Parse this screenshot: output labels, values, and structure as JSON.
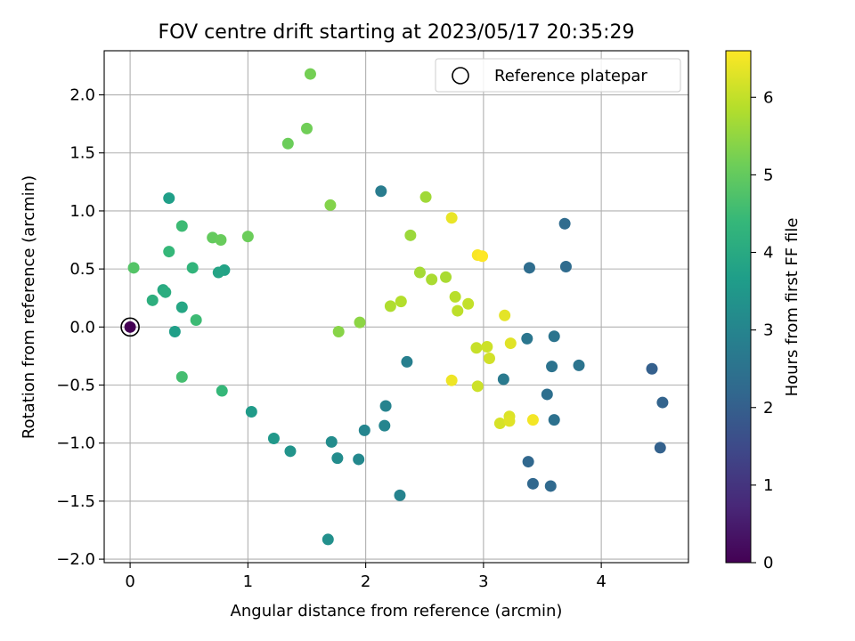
{
  "chart_data": {
    "type": "scatter",
    "title": "FOV centre drift starting at 2023/05/17 20:35:29",
    "xlabel": "Angular distance from reference (arcmin)",
    "ylabel": "Rotation from reference (arcmin)",
    "xlim": [
      -0.22,
      4.74
    ],
    "ylim": [
      -2.03,
      2.38
    ],
    "xticks": [
      "0",
      "1",
      "2",
      "3",
      "4"
    ],
    "yticks": [
      "−2.0",
      "−1.5",
      "−1.0",
      "−0.5",
      "0.0",
      "0.5",
      "1.0",
      "1.5",
      "2.0"
    ],
    "grid": true,
    "legend": {
      "placement": "top-right",
      "entries": [
        "Reference platepar"
      ]
    },
    "reference_point": {
      "x": 0.0,
      "y": 0.0,
      "hours": 0.0
    },
    "colorbar": {
      "label": "Hours from first FF file",
      "range": [
        0,
        6.6
      ],
      "ticks": [
        "0",
        "1",
        "2",
        "3",
        "4",
        "5",
        "6"
      ],
      "colormap": [
        "#440154",
        "#482878",
        "#3e4989",
        "#31688e",
        "#26828e",
        "#1f9e89",
        "#35b779",
        "#6ece58",
        "#b5de2b",
        "#fde725"
      ]
    },
    "points": [
      {
        "x": 4.43,
        "y": -0.36,
        "hours": 2.0
      },
      {
        "x": 4.52,
        "y": -0.65,
        "hours": 2.1
      },
      {
        "x": 4.5,
        "y": -1.04,
        "hours": 2.05
      },
      {
        "x": 3.38,
        "y": -1.16,
        "hours": 2.2
      },
      {
        "x": 3.42,
        "y": -1.35,
        "hours": 2.2
      },
      {
        "x": 3.57,
        "y": -1.37,
        "hours": 2.25
      },
      {
        "x": 3.69,
        "y": 0.89,
        "hours": 2.3
      },
      {
        "x": 3.7,
        "y": 0.52,
        "hours": 2.3
      },
      {
        "x": 3.39,
        "y": 0.51,
        "hours": 2.35
      },
      {
        "x": 3.54,
        "y": -0.58,
        "hours": 2.4
      },
      {
        "x": 3.6,
        "y": -0.8,
        "hours": 2.45
      },
      {
        "x": 3.58,
        "y": -0.34,
        "hours": 2.5
      },
      {
        "x": 3.6,
        "y": -0.08,
        "hours": 2.55
      },
      {
        "x": 3.81,
        "y": -0.33,
        "hours": 2.55
      },
      {
        "x": 3.37,
        "y": -0.1,
        "hours": 2.6
      },
      {
        "x": 3.17,
        "y": -0.45,
        "hours": 2.7
      },
      {
        "x": 2.13,
        "y": 1.17,
        "hours": 2.75
      },
      {
        "x": 2.35,
        "y": -0.3,
        "hours": 2.85
      },
      {
        "x": 2.29,
        "y": -1.45,
        "hours": 2.95
      },
      {
        "x": 2.17,
        "y": -0.68,
        "hours": 2.95
      },
      {
        "x": 2.16,
        "y": -0.85,
        "hours": 3.0
      },
      {
        "x": 1.99,
        "y": -0.89,
        "hours": 3.0
      },
      {
        "x": 1.94,
        "y": -1.14,
        "hours": 3.1
      },
      {
        "x": 1.76,
        "y": -1.13,
        "hours": 3.2
      },
      {
        "x": 1.71,
        "y": -0.99,
        "hours": 3.2
      },
      {
        "x": 1.68,
        "y": -1.83,
        "hours": 3.3
      },
      {
        "x": 1.36,
        "y": -1.07,
        "hours": 3.4
      },
      {
        "x": 1.22,
        "y": -0.96,
        "hours": 3.5
      },
      {
        "x": 1.03,
        "y": -0.73,
        "hours": 3.6
      },
      {
        "x": 0.38,
        "y": -0.04,
        "hours": 3.7
      },
      {
        "x": 0.33,
        "y": 1.11,
        "hours": 3.7
      },
      {
        "x": 0.8,
        "y": 0.49,
        "hours": 3.8
      },
      {
        "x": 0.75,
        "y": 0.47,
        "hours": 3.85
      },
      {
        "x": 0.44,
        "y": 0.17,
        "hours": 3.9
      },
      {
        "x": 0.28,
        "y": 0.32,
        "hours": 4.0
      },
      {
        "x": 0.3,
        "y": 0.3,
        "hours": 4.1
      },
      {
        "x": 0.19,
        "y": 0.23,
        "hours": 4.15
      },
      {
        "x": 0.53,
        "y": 0.51,
        "hours": 4.3
      },
      {
        "x": 0.33,
        "y": 0.65,
        "hours": 4.4
      },
      {
        "x": 0.44,
        "y": 0.87,
        "hours": 4.5
      },
      {
        "x": 0.78,
        "y": -0.55,
        "hours": 4.4
      },
      {
        "x": 0.56,
        "y": 0.06,
        "hours": 4.5
      },
      {
        "x": 0.44,
        "y": -0.43,
        "hours": 4.6
      },
      {
        "x": 0.03,
        "y": 0.51,
        "hours": 4.8
      },
      {
        "x": 0.7,
        "y": 0.77,
        "hours": 5.0
      },
      {
        "x": 0.77,
        "y": 0.75,
        "hours": 5.05
      },
      {
        "x": 1.0,
        "y": 0.78,
        "hours": 5.1
      },
      {
        "x": 1.34,
        "y": 1.58,
        "hours": 5.1
      },
      {
        "x": 1.5,
        "y": 1.71,
        "hours": 5.15
      },
      {
        "x": 1.53,
        "y": 2.18,
        "hours": 5.2
      },
      {
        "x": 1.7,
        "y": 1.05,
        "hours": 5.35
      },
      {
        "x": 1.77,
        "y": -0.04,
        "hours": 5.4
      },
      {
        "x": 1.95,
        "y": 0.04,
        "hours": 5.45
      },
      {
        "x": 2.38,
        "y": 0.79,
        "hours": 5.6
      },
      {
        "x": 2.51,
        "y": 1.12,
        "hours": 5.65
      },
      {
        "x": 2.46,
        "y": 0.47,
        "hours": 5.7
      },
      {
        "x": 2.56,
        "y": 0.41,
        "hours": 5.75
      },
      {
        "x": 2.68,
        "y": 0.43,
        "hours": 5.75
      },
      {
        "x": 2.21,
        "y": 0.18,
        "hours": 5.8
      },
      {
        "x": 2.3,
        "y": 0.22,
        "hours": 5.85
      },
      {
        "x": 2.76,
        "y": 0.26,
        "hours": 5.9
      },
      {
        "x": 2.78,
        "y": 0.14,
        "hours": 5.95
      },
      {
        "x": 2.87,
        "y": 0.2,
        "hours": 6.0
      },
      {
        "x": 2.94,
        "y": -0.18,
        "hours": 6.05
      },
      {
        "x": 3.03,
        "y": -0.17,
        "hours": 6.1
      },
      {
        "x": 2.95,
        "y": -0.51,
        "hours": 6.1
      },
      {
        "x": 3.05,
        "y": -0.27,
        "hours": 6.15
      },
      {
        "x": 3.14,
        "y": -0.83,
        "hours": 6.2
      },
      {
        "x": 3.22,
        "y": -0.77,
        "hours": 6.25
      },
      {
        "x": 3.22,
        "y": -0.81,
        "hours": 6.3
      },
      {
        "x": 3.23,
        "y": -0.14,
        "hours": 6.3
      },
      {
        "x": 3.18,
        "y": 0.1,
        "hours": 6.35
      },
      {
        "x": 2.73,
        "y": 0.94,
        "hours": 6.4
      },
      {
        "x": 2.73,
        "y": -0.46,
        "hours": 6.45
      },
      {
        "x": 3.42,
        "y": -0.8,
        "hours": 6.5
      },
      {
        "x": 2.95,
        "y": 0.62,
        "hours": 6.55
      },
      {
        "x": 2.99,
        "y": 0.61,
        "hours": 6.6
      }
    ]
  }
}
